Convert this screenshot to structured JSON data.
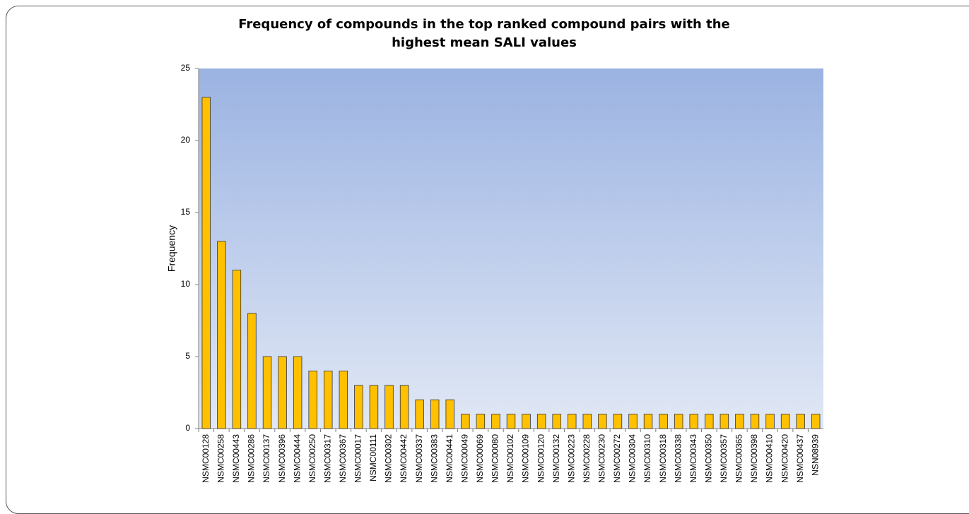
{
  "chart_data": {
    "type": "bar",
    "title": "Frequency of compounds in the top ranked compound pairs with the highest mean SALI values",
    "y_label": "Frequency",
    "categories": [
      "NSMC00128",
      "NSMC00258",
      "NSMC00443",
      "NSMC00286",
      "NSMC00137",
      "NSMC00396",
      "NSMC00444",
      "NSMC00250",
      "NSMC00317",
      "NSMC00367",
      "NSMC00017",
      "NSMC00111",
      "NSMC00302",
      "NSMC00442",
      "NSMC00337",
      "NSMC00383",
      "NSMC00441",
      "NSMC00049",
      "NSMC00069",
      "NSMC00080",
      "NSMC00102",
      "NSMC00109",
      "NSMC00120",
      "NSMC00132",
      "NSMC00223",
      "NSMC00228",
      "NSMC00230",
      "NSMC00272",
      "NSMC00304",
      "NSMC00310",
      "NSMC00318",
      "NSMC00338",
      "NSMC00343",
      "NSMC00350",
      "NSMC00357",
      "NSMC00365",
      "NSMC00398",
      "NSMC00410",
      "NSMC00420",
      "NSMC00437",
      "NSN08939"
    ],
    "values": [
      23,
      13,
      11,
      8,
      5,
      5,
      5,
      4,
      4,
      4,
      3,
      3,
      3,
      3,
      2,
      2,
      2,
      1,
      1,
      1,
      1,
      1,
      1,
      1,
      1,
      1,
      1,
      1,
      1,
      1,
      1,
      1,
      1,
      1,
      1,
      1,
      1,
      1,
      1,
      1,
      1
    ],
    "color": "#ffc000",
    "ylim": [
      0,
      25
    ],
    "yticks": [
      0,
      5,
      10,
      15,
      20,
      25
    ]
  }
}
